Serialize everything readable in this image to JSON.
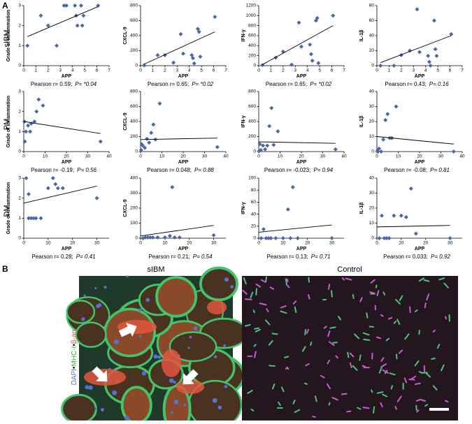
{
  "panel_labels": [
    "A",
    "B"
  ],
  "row_labels": [
    "sIBM",
    "PM",
    "DM"
  ],
  "chart_data": [
    {
      "type": "scatter",
      "ylabel": "Grade of inflammation",
      "xlabel": "APP",
      "pearson_r": "Pearson r= 0.59;",
      "p_value": "P= *0.04",
      "color": "#4a68a8",
      "xlim": [
        0,
        7
      ],
      "xticks": [
        0,
        1,
        2,
        3,
        4,
        5,
        6,
        7
      ],
      "ylim": [
        0,
        3
      ],
      "yticks": [
        0,
        1,
        2,
        3
      ],
      "x": [
        0.3,
        1.4,
        2,
        2.7,
        3.3,
        3.5,
        4.2,
        4.3,
        4.4,
        4.7,
        4.8,
        4.9,
        6.1
      ],
      "y": [
        1,
        2.5,
        2,
        1,
        3,
        3,
        3,
        2.5,
        2,
        3,
        2,
        2.5,
        3
      ],
      "fit": {
        "x": [
          0.3,
          6.1
        ],
        "y": [
          1.45,
          2.95
        ]
      }
    },
    {
      "type": "scatter",
      "ylabel": "CXCL-9",
      "xlabel": "APP",
      "pearson_r": "Pearson r= 0.65;",
      "p_value": "P= *0.02",
      "color": "#4a68a8",
      "xlim": [
        0,
        7
      ],
      "xticks": [
        0,
        1,
        2,
        3,
        4,
        5,
        6,
        7
      ],
      "ylim": [
        0,
        800
      ],
      "yticks": [
        0,
        200,
        400,
        600,
        800
      ],
      "x": [
        0.3,
        1.4,
        2,
        2.7,
        3.3,
        3.5,
        4.2,
        4.3,
        4.4,
        4.7,
        4.8,
        4.9,
        6.1
      ],
      "y": [
        5,
        140,
        140,
        40,
        420,
        160,
        140,
        100,
        30,
        490,
        450,
        120,
        650
      ],
      "fit": {
        "x": [
          0.3,
          6.1
        ],
        "y": [
          20,
          450
        ]
      }
    },
    {
      "type": "scatter",
      "ylabel": "IFN-γ",
      "xlabel": "APP",
      "pearson_r": "Pearson r= 0.65;",
      "p_value": "P= *0.02",
      "color": "#4a68a8",
      "xlim": [
        0,
        7
      ],
      "xticks": [
        0,
        1,
        2,
        3,
        4,
        5,
        6,
        7
      ],
      "ylim": [
        0,
        1200
      ],
      "yticks": [
        0,
        200,
        400,
        600,
        800,
        1000,
        1200
      ],
      "x": [
        0.3,
        1.4,
        2,
        2.7,
        3.3,
        3.5,
        4.2,
        4.3,
        4.4,
        4.7,
        4.8,
        4.9,
        6.1
      ],
      "y": [
        10,
        160,
        280,
        20,
        860,
        380,
        420,
        230,
        100,
        900,
        950,
        50,
        1000
      ],
      "fit": {
        "x": [
          0.3,
          6.1
        ],
        "y": [
          20,
          800
        ]
      }
    },
    {
      "type": "scatter",
      "ylabel": "IL-1β",
      "xlabel": "APP",
      "pearson_r": "Pearson r= 0.43;",
      "p_value": "P= 0.16",
      "color": "#4a68a8",
      "xlim": [
        0,
        7
      ],
      "xticks": [
        0,
        1,
        2,
        3,
        4,
        5,
        6,
        7
      ],
      "ylim": [
        0,
        80
      ],
      "yticks": [
        0,
        20,
        40,
        60,
        80
      ],
      "x": [
        0.3,
        1.4,
        2,
        2.7,
        3.3,
        3.5,
        4.2,
        4.3,
        4.4,
        4.7,
        4.8,
        4.9,
        6.1
      ],
      "y": [
        0,
        0,
        14,
        20,
        75,
        18,
        13,
        5,
        0,
        60,
        22,
        13,
        42
      ],
      "fit": {
        "x": [
          0.3,
          6.1
        ],
        "y": [
          4,
          40
        ]
      }
    },
    {
      "type": "scatter",
      "ylabel": "Grade of inflammation",
      "xlabel": "APP",
      "pearson_r": "Pearson r= -0.19;",
      "p_value": "P= 0.56",
      "color": "#4a68a8",
      "xlim": [
        0,
        40
      ],
      "xticks": [
        0,
        10,
        20,
        30,
        40
      ],
      "ylim": [
        0,
        3
      ],
      "yticks": [
        0,
        1,
        2,
        3
      ],
      "x": [
        0.3,
        0.5,
        1,
        2,
        3,
        3.5,
        5,
        6,
        7,
        9,
        36
      ],
      "y": [
        1.5,
        0.5,
        1,
        1.3,
        1,
        1.4,
        1.5,
        2,
        2.6,
        2.3,
        0.5
      ],
      "fit": {
        "x": [
          0,
          36
        ],
        "y": [
          1.5,
          0.9
        ]
      }
    },
    {
      "type": "scatter",
      "ylabel": "CXCL-9",
      "xlabel": "APP",
      "pearson_r": "Pearson r= 0.048;",
      "p_value": "P= 0.88",
      "color": "#4a68a8",
      "xlim": [
        0,
        40
      ],
      "xticks": [
        0,
        10,
        20,
        30,
        40
      ],
      "ylim": [
        0,
        800
      ],
      "yticks": [
        0,
        200,
        400,
        600,
        800
      ],
      "x": [
        0.3,
        0.5,
        1,
        2,
        3,
        4,
        5,
        6,
        7,
        9,
        36
      ],
      "y": [
        20,
        100,
        80,
        50,
        170,
        120,
        250,
        360,
        160,
        640,
        60
      ],
      "fit": {
        "x": [
          0,
          36
        ],
        "y": [
          160,
          180
        ]
      }
    },
    {
      "type": "scatter",
      "ylabel": "IFN-γ",
      "xlabel": "APP",
      "pearson_r": "Pearson r= -0.023;",
      "p_value": "P= 0.94",
      "color": "#4a68a8",
      "xlim": [
        0,
        40
      ],
      "xticks": [
        0,
        10,
        20,
        30,
        40
      ],
      "ylim": [
        0,
        800
      ],
      "yticks": [
        0,
        200,
        400,
        600,
        800
      ],
      "x": [
        0.3,
        0.5,
        1,
        2,
        3,
        4,
        5,
        6,
        7,
        9,
        36
      ],
      "y": [
        10,
        100,
        20,
        80,
        30,
        80,
        340,
        580,
        90,
        270,
        30
      ],
      "fit": {
        "x": [
          0,
          36
        ],
        "y": [
          130,
          110
        ]
      }
    },
    {
      "type": "scatter",
      "ylabel": "IL-1β",
      "xlabel": "APP",
      "pearson_r": "Pearson r= -0.08;",
      "p_value": "P= 0.81",
      "color": "#4a68a8",
      "xlim": [
        0,
        40
      ],
      "xticks": [
        0,
        10,
        20,
        30,
        40
      ],
      "ylim": [
        0,
        40
      ],
      "yticks": [
        0,
        10,
        20,
        30,
        40
      ],
      "x": [
        0.3,
        0.5,
        1,
        2,
        3,
        4,
        5,
        6,
        7,
        9,
        36
      ],
      "y": [
        1,
        0,
        2,
        0,
        8,
        21,
        25,
        9,
        9,
        30,
        0
      ],
      "fit": {
        "x": [
          0,
          36
        ],
        "y": [
          10,
          5
        ]
      }
    },
    {
      "type": "scatter",
      "ylabel": "Grade of inflammation",
      "xlabel": "APP",
      "pearson_r": "Pearson r= 0.28;",
      "p_value": "P= 0.41",
      "color": "#4a68a8",
      "xlim": [
        0,
        35
      ],
      "xticks": [
        0,
        10,
        20,
        30
      ],
      "ylim": [
        0,
        3
      ],
      "yticks": [
        0,
        1,
        2,
        3
      ],
      "x": [
        1,
        2,
        2,
        3,
        4,
        5,
        7,
        10,
        12,
        13,
        14,
        16,
        30
      ],
      "y": [
        3,
        2.2,
        1,
        1,
        1,
        1,
        1,
        2.5,
        3,
        2.7,
        2.5,
        2.5,
        2
      ],
      "fit": {
        "x": [
          0,
          30
        ],
        "y": [
          1.75,
          2.6
        ]
      }
    },
    {
      "type": "scatter",
      "ylabel": "CXCL-9",
      "xlabel": "APP",
      "pearson_r": "Pearson r= 0.21;",
      "p_value": "P= 0.54",
      "color": "#4a68a8",
      "xlim": [
        0,
        35
      ],
      "xticks": [
        0,
        10,
        20,
        30
      ],
      "ylim": [
        0,
        400
      ],
      "yticks": [
        0,
        100,
        200,
        300,
        400
      ],
      "x": [
        1,
        2,
        3,
        4,
        5,
        7,
        10,
        12,
        13,
        14,
        16,
        30
      ],
      "y": [
        0,
        5,
        5,
        5,
        5,
        5,
        5,
        15,
        340,
        5,
        5,
        20
      ],
      "fit": {
        "x": [
          0,
          30
        ],
        "y": [
          15,
          85
        ]
      }
    },
    {
      "type": "scatter",
      "ylabel": "IFN-γ",
      "xlabel": "APP",
      "pearson_r": "Pearson r= 0.13;",
      "p_value": "P= 0.71",
      "color": "#4a68a8",
      "xlim": [
        0,
        35
      ],
      "xticks": [
        0,
        10,
        20,
        30
      ],
      "ylim": [
        0,
        100
      ],
      "yticks": [
        0,
        20,
        40,
        60,
        80,
        100
      ],
      "x": [
        1,
        2,
        3,
        4,
        5,
        7,
        10,
        12,
        13,
        14,
        16,
        30
      ],
      "y": [
        0,
        15,
        0,
        0,
        0,
        0,
        0,
        48,
        0,
        85,
        0,
        0
      ],
      "fit": {
        "x": [
          0,
          30
        ],
        "y": [
          10,
          22
        ]
      }
    },
    {
      "type": "scatter",
      "ylabel": "IL-1β",
      "xlabel": "APP",
      "pearson_r": "Pearson r= 0.033;",
      "p_value": "P= 0.92",
      "color": "#4a68a8",
      "xlim": [
        0,
        35
      ],
      "xticks": [
        0,
        10,
        20,
        30
      ],
      "ylim": [
        0,
        40
      ],
      "yticks": [
        0,
        10,
        20,
        30,
        40
      ],
      "x": [
        1,
        2,
        3,
        4,
        5,
        7,
        10,
        12,
        14,
        16,
        30
      ],
      "y": [
        0,
        15,
        0,
        0,
        0,
        15,
        15,
        14,
        33,
        3,
        0
      ],
      "fit": {
        "x": [
          0,
          30
        ],
        "y": [
          7.5,
          8.5
        ]
      }
    }
  ],
  "images": [
    {
      "title": "sIBM"
    },
    {
      "title": "Control"
    }
  ],
  "stain_labels": [
    "DAPI",
    "•",
    "MHC-I",
    "•",
    "β-amyloid"
  ]
}
